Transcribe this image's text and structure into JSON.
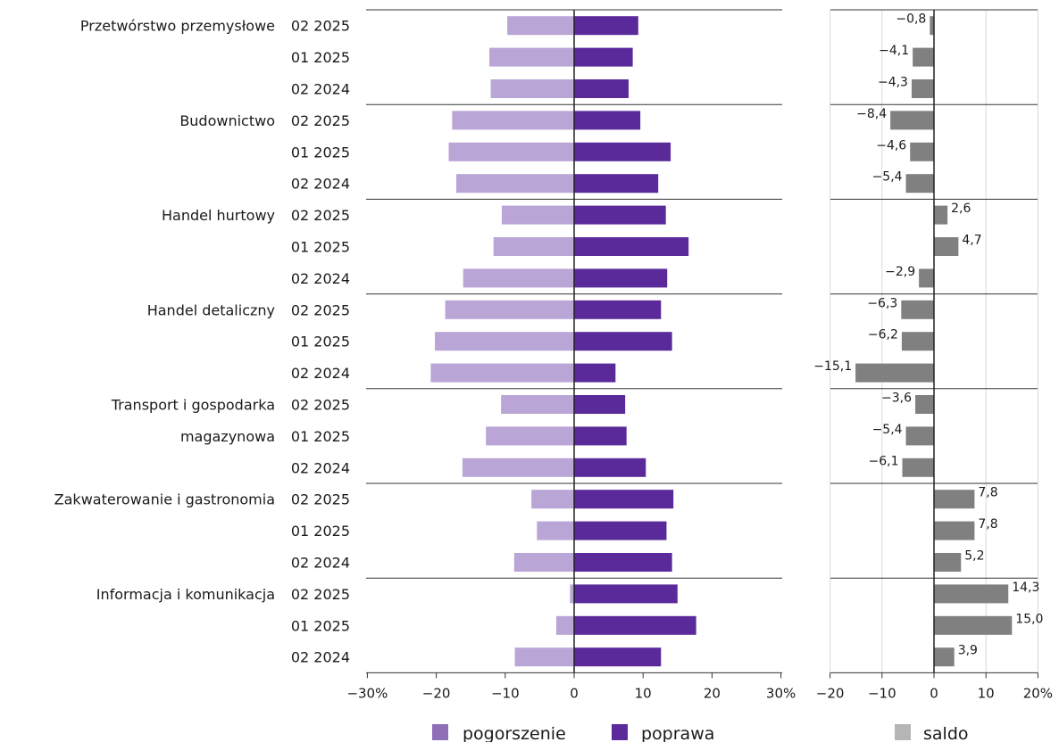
{
  "chart_data": [
    {
      "type": "bar",
      "orientation": "horizontal",
      "stacked": "diverging",
      "groups": [
        {
          "name": "Przetwórstwo przemysłowe",
          "periods": [
            "02 2025",
            "01 2025",
            "02 2024"
          ],
          "pogorszenie": [
            9.7,
            12.3,
            12.1
          ],
          "poprawa": [
            9.3,
            8.5,
            7.9
          ]
        },
        {
          "name": "Budownictwo",
          "periods": [
            "02 2025",
            "01 2025",
            "02 2024"
          ],
          "pogorszenie": [
            17.7,
            18.2,
            17.1
          ],
          "poprawa": [
            9.6,
            14.0,
            12.2
          ]
        },
        {
          "name": "Handel hurtowy",
          "periods": [
            "02 2025",
            "01 2025",
            "02 2024"
          ],
          "pogorszenie": [
            10.5,
            11.7,
            16.1
          ],
          "poprawa": [
            13.3,
            16.6,
            13.5
          ]
        },
        {
          "name": "Handel detaliczny",
          "periods": [
            "02 2025",
            "01 2025",
            "02 2024"
          ],
          "pogorszenie": [
            18.7,
            20.2,
            20.8
          ],
          "poprawa": [
            12.6,
            14.2,
            6.0
          ]
        },
        {
          "name": "Transport i gospodarka magazynowa",
          "name_lines": [
            "Transport i gospodarka",
            "magazynowa"
          ],
          "periods": [
            "02 2025",
            "01 2025",
            "02 2024"
          ],
          "pogorszenie": [
            10.6,
            12.8,
            16.2
          ],
          "poprawa": [
            7.4,
            7.6,
            10.4
          ]
        },
        {
          "name": "Zakwaterowanie i gastronomia",
          "periods": [
            "02 2025",
            "01 2025",
            "02 2024"
          ],
          "pogorszenie": [
            6.2,
            5.4,
            8.7
          ],
          "poprawa": [
            14.4,
            13.4,
            14.2
          ]
        },
        {
          "name": "Informacja i komunikacja",
          "periods": [
            "02 2025",
            "01 2025",
            "02 2024"
          ],
          "pogorszenie": [
            0.6,
            2.6,
            8.6
          ],
          "poprawa": [
            15.0,
            17.7,
            12.6
          ]
        }
      ],
      "series": [
        {
          "name": "pogorszenie",
          "color": "#b9a5d6"
        },
        {
          "name": "poprawa",
          "color": "#5a2a9a"
        }
      ],
      "xlim": [
        -30,
        30
      ],
      "xticks": [
        "−30%",
        "−20",
        "−10",
        "0",
        "10",
        "20",
        "30%"
      ]
    },
    {
      "type": "bar",
      "orientation": "horizontal",
      "series": [
        {
          "name": "saldo",
          "color": "#808080"
        }
      ],
      "values": [
        -0.8,
        -4.1,
        -4.3,
        -8.4,
        -4.6,
        -5.4,
        2.6,
        4.7,
        -2.9,
        -6.3,
        -6.2,
        -15.1,
        -3.6,
        -5.4,
        -6.1,
        7.8,
        7.8,
        5.2,
        14.3,
        15.0,
        3.9
      ],
      "value_labels": [
        "−0,8",
        "−4,1",
        "−4,3",
        "−8,4",
        "−4,6",
        "−5,4",
        "2,6",
        "4,7",
        "−2,9",
        "−6,3",
        "−6,2",
        "−15,1",
        "−3,6",
        "−5,4",
        "−6,1",
        "7,8",
        "7,8",
        "5,2",
        "14,3",
        "15,0",
        "3,9"
      ],
      "xlim": [
        -20,
        20
      ],
      "xticks": [
        "−20",
        "−10",
        "0",
        "10",
        "20%"
      ],
      "grid": true
    }
  ],
  "legend": {
    "items": [
      {
        "label": "pogorszenie",
        "color": "#8f6fb8"
      },
      {
        "label": "poprawa",
        "color": "#5a2a9a"
      },
      {
        "label": "saldo",
        "color": "#b5b5b5"
      }
    ],
    "placement": "bottom"
  }
}
